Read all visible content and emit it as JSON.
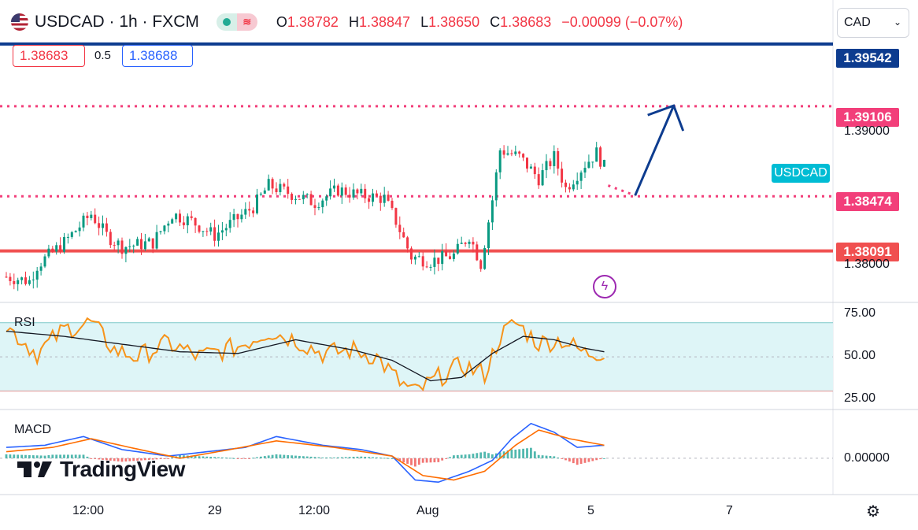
{
  "header": {
    "symbol": "USDCAD · 1h · FXCM",
    "open_label": "O",
    "open": "1.38782",
    "high_label": "H",
    "high": "1.38847",
    "low_label": "L",
    "low": "1.38650",
    "close_label": "C",
    "close": "1.38683",
    "change": "−0.00099 (−0.07%)"
  },
  "order_panel": {
    "sell_price": "1.38683",
    "spread": "0.5",
    "buy_price": "1.38688"
  },
  "currency_select": {
    "value": "CAD"
  },
  "symbol_tag": "USDCAD",
  "watermark": "TradingView",
  "colors": {
    "up": "#089981",
    "down": "#f23645",
    "blue_line": "#0d3c8f",
    "rsi": "#f7931a",
    "macd": "#2962ff",
    "signal": "#ff6d00"
  },
  "chart_data": [
    {
      "type": "candlestick",
      "title": "USDCAD · 1h · FXCM",
      "x_ticks": [
        "12:00",
        "29",
        "12:00",
        "Aug",
        "5",
        "7"
      ],
      "y_ticks": [
        "1.39000",
        "1.38000"
      ],
      "ylim": [
        1.3773,
        1.3963
      ],
      "price_series_path": [
        {
          "t": 0,
          "p": 1.3791
        },
        {
          "t": 6,
          "p": 1.3788
        },
        {
          "t": 8,
          "p": 1.3799
        },
        {
          "t": 15,
          "p": 1.3815
        },
        {
          "t": 22,
          "p": 1.3835
        },
        {
          "t": 26,
          "p": 1.382
        },
        {
          "t": 30,
          "p": 1.3812
        },
        {
          "t": 38,
          "p": 1.3815
        },
        {
          "t": 43,
          "p": 1.3835
        },
        {
          "t": 48,
          "p": 1.383
        },
        {
          "t": 54,
          "p": 1.382
        },
        {
          "t": 60,
          "p": 1.3832
        },
        {
          "t": 64,
          "p": 1.384
        },
        {
          "t": 68,
          "p": 1.3855
        },
        {
          "t": 75,
          "p": 1.3848
        },
        {
          "t": 80,
          "p": 1.3843
        },
        {
          "t": 86,
          "p": 1.3852
        },
        {
          "t": 92,
          "p": 1.3848
        },
        {
          "t": 98,
          "p": 1.3846
        },
        {
          "t": 101,
          "p": 1.383
        },
        {
          "t": 105,
          "p": 1.3805
        },
        {
          "t": 110,
          "p": 1.3802
        },
        {
          "t": 116,
          "p": 1.3806
        },
        {
          "t": 120,
          "p": 1.382
        },
        {
          "t": 123,
          "p": 1.38
        },
        {
          "t": 126,
          "p": 1.3845
        },
        {
          "t": 128,
          "p": 1.388
        },
        {
          "t": 133,
          "p": 1.3875
        },
        {
          "t": 138,
          "p": 1.386
        },
        {
          "t": 142,
          "p": 1.3875
        },
        {
          "t": 145,
          "p": 1.3853
        },
        {
          "t": 150,
          "p": 1.387
        },
        {
          "t": 153,
          "p": 1.3878
        },
        {
          "t": 155,
          "p": 1.3868
        }
      ],
      "levels": [
        {
          "name": "resistance-2",
          "value": 1.39542,
          "label": "1.39542",
          "style": "solid",
          "color": "#0d3c8f"
        },
        {
          "name": "resistance-1",
          "value": 1.39106,
          "label": "1.39106",
          "style": "dotted",
          "color": "#f23f7a"
        },
        {
          "name": "pivot",
          "value": 1.38474,
          "label": "1.38474",
          "style": "dotted",
          "color": "#f23f7a"
        },
        {
          "name": "support",
          "value": 1.38091,
          "label": "1.38091",
          "style": "solid",
          "color": "#f05050"
        }
      ],
      "projection": {
        "points": [
          {
            "t": 156,
            "p": 1.3855
          },
          {
            "t": 163,
            "p": 1.3848
          },
          {
            "t": 173,
            "p": 1.3911
          }
        ]
      }
    },
    {
      "type": "line",
      "title": "RSI",
      "y_ticks": [
        "75.00",
        "50.00",
        "25.00"
      ],
      "ylim": [
        22,
        80
      ],
      "band": [
        30,
        70
      ],
      "rsi_path": [
        {
          "t": 0,
          "v": 68
        },
        {
          "t": 8,
          "v": 52
        },
        {
          "t": 15,
          "v": 66
        },
        {
          "t": 22,
          "v": 70
        },
        {
          "t": 28,
          "v": 54
        },
        {
          "t": 34,
          "v": 50
        },
        {
          "t": 42,
          "v": 58
        },
        {
          "t": 50,
          "v": 50
        },
        {
          "t": 60,
          "v": 56
        },
        {
          "t": 68,
          "v": 65
        },
        {
          "t": 75,
          "v": 60
        },
        {
          "t": 82,
          "v": 52
        },
        {
          "t": 90,
          "v": 54
        },
        {
          "t": 96,
          "v": 50
        },
        {
          "t": 102,
          "v": 35
        },
        {
          "t": 106,
          "v": 29
        },
        {
          "t": 112,
          "v": 38
        },
        {
          "t": 118,
          "v": 45
        },
        {
          "t": 124,
          "v": 40
        },
        {
          "t": 128,
          "v": 62
        },
        {
          "t": 132,
          "v": 70
        },
        {
          "t": 138,
          "v": 58
        },
        {
          "t": 144,
          "v": 60
        },
        {
          "t": 150,
          "v": 52
        },
        {
          "t": 155,
          "v": 53
        }
      ],
      "ma_path": [
        {
          "t": 0,
          "v": 65
        },
        {
          "t": 15,
          "v": 62
        },
        {
          "t": 28,
          "v": 58
        },
        {
          "t": 45,
          "v": 53
        },
        {
          "t": 60,
          "v": 52
        },
        {
          "t": 75,
          "v": 60
        },
        {
          "t": 90,
          "v": 54
        },
        {
          "t": 100,
          "v": 48
        },
        {
          "t": 110,
          "v": 36
        },
        {
          "t": 118,
          "v": 38
        },
        {
          "t": 126,
          "v": 52
        },
        {
          "t": 134,
          "v": 62
        },
        {
          "t": 142,
          "v": 60
        },
        {
          "t": 150,
          "v": 55
        },
        {
          "t": 155,
          "v": 53
        }
      ]
    },
    {
      "type": "line",
      "title": "MACD",
      "y_ticks": [
        "0.00000"
      ],
      "ylim": [
        -1.6,
        2.1
      ],
      "macd_path": [
        {
          "t": 0,
          "v": 0.5
        },
        {
          "t": 10,
          "v": 0.6
        },
        {
          "t": 20,
          "v": 1.0
        },
        {
          "t": 30,
          "v": 0.4
        },
        {
          "t": 42,
          "v": 0.1
        },
        {
          "t": 52,
          "v": 0.3
        },
        {
          "t": 62,
          "v": 0.5
        },
        {
          "t": 70,
          "v": 1.0
        },
        {
          "t": 82,
          "v": 0.6
        },
        {
          "t": 92,
          "v": 0.4
        },
        {
          "t": 100,
          "v": 0.1
        },
        {
          "t": 106,
          "v": -1.0
        },
        {
          "t": 112,
          "v": -1.1
        },
        {
          "t": 120,
          "v": -0.6
        },
        {
          "t": 126,
          "v": -0.1
        },
        {
          "t": 131,
          "v": 0.9
        },
        {
          "t": 136,
          "v": 1.6
        },
        {
          "t": 142,
          "v": 1.2
        },
        {
          "t": 148,
          "v": 0.5
        },
        {
          "t": 155,
          "v": 0.6
        }
      ],
      "signal_path": [
        {
          "t": 0,
          "v": 0.3
        },
        {
          "t": 12,
          "v": 0.5
        },
        {
          "t": 22,
          "v": 0.9
        },
        {
          "t": 32,
          "v": 0.5
        },
        {
          "t": 45,
          "v": 0.0
        },
        {
          "t": 58,
          "v": 0.4
        },
        {
          "t": 70,
          "v": 0.8
        },
        {
          "t": 85,
          "v": 0.5
        },
        {
          "t": 100,
          "v": 0.1
        },
        {
          "t": 108,
          "v": -0.8
        },
        {
          "t": 116,
          "v": -1.0
        },
        {
          "t": 124,
          "v": -0.6
        },
        {
          "t": 132,
          "v": 0.6
        },
        {
          "t": 138,
          "v": 1.3
        },
        {
          "t": 146,
          "v": 0.9
        },
        {
          "t": 155,
          "v": 0.6
        }
      ]
    }
  ]
}
